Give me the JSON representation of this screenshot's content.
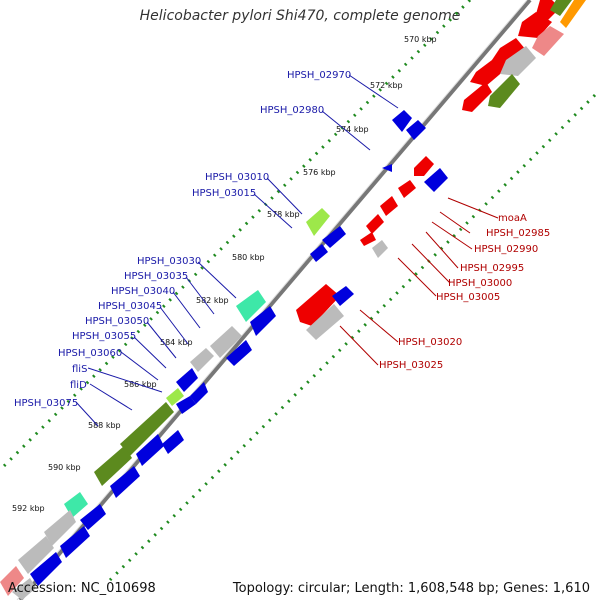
{
  "title": "Helicobacter pylori Shi470, complete genome",
  "footer": {
    "accession": "Accession: NC_010698",
    "topology": "Topology: circular; Length: 1,608,548 bp; Genes: 1,610"
  },
  "ticks": [
    "570 kbp",
    "572 kbp",
    "574 kbp",
    "576 kbp",
    "578 kbp",
    "580 kbp",
    "582 kbp",
    "584 kbp",
    "586 kbp",
    "588 kbp",
    "590 kbp",
    "592 kbp"
  ],
  "colors": {
    "forward_cds": "#ee0000",
    "reverse_cds": "#0000dd",
    "other_gray": "#bbbbbb",
    "olive": "#5c8a1e",
    "lime": "#9de84a",
    "mint": "#3ee8a8",
    "orange": "#ff9900",
    "pink": "#ee8888",
    "label_blue": "#1a1aa8",
    "label_red": "#b00000",
    "dotted_ring": "#1f8a1f"
  },
  "left_labels": [
    "HPSH_02970",
    "HPSH_02980",
    "HPSH_03010",
    "HPSH_03015",
    "HPSH_03030",
    "HPSH_03035",
    "HPSH_03040",
    "HPSH_03045",
    "HPSH_03050",
    "HPSH_03055",
    "HPSH_03060",
    "fliS",
    "fliD",
    "HPSH_03075"
  ],
  "right_labels": [
    "moaA",
    "HPSH_02985",
    "HPSH_02990",
    "HPSH_02995",
    "HPSH_03000",
    "HPSH_03005",
    "HPSH_03020",
    "HPSH_03025"
  ]
}
